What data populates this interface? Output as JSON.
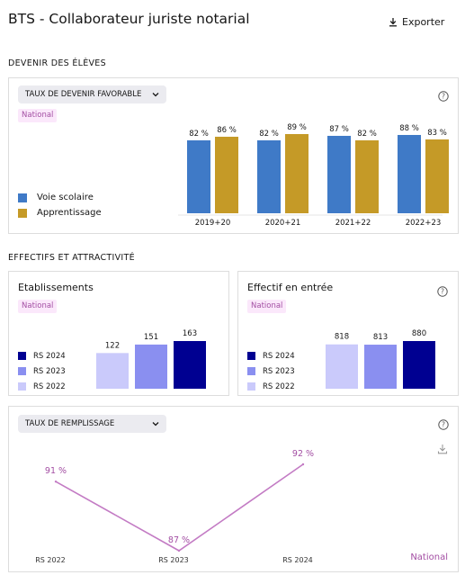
{
  "page": {
    "title": "BTS - Collaborateur juriste notarial",
    "export_label": "Exporter"
  },
  "devenir": {
    "section_title": "DEVENIR DES ÉLÈVES",
    "select_value": "TAUX DE DEVENIR FAVORABLE",
    "scope_tag": "National",
    "legend": [
      {
        "label": "Voie scolaire",
        "color": "#3f7ac7"
      },
      {
        "label": "Apprentissage",
        "color": "#c59a27"
      }
    ],
    "chart_data": {
      "type": "bar",
      "categories": [
        "2019+20",
        "2020+21",
        "2021+22",
        "2022+23"
      ],
      "series": [
        {
          "name": "Voie scolaire",
          "values": [
            82,
            82,
            87,
            88
          ],
          "labels": [
            "82 %",
            "82 %",
            "87 %",
            "88 %"
          ]
        },
        {
          "name": "Apprentissage",
          "values": [
            86,
            89,
            82,
            83
          ],
          "labels": [
            "86 %",
            "89 %",
            "82 %",
            "83 %"
          ]
        }
      ]
    }
  },
  "effectifs": {
    "section_title": "EFFECTIFS ET ATTRACTIVITÉ",
    "etablissements": {
      "title": "Etablissements",
      "scope_tag": "National",
      "legend": [
        {
          "label": "RS 2024",
          "color": "#000091"
        },
        {
          "label": "RS 2023",
          "color": "#8a8ff0"
        },
        {
          "label": "RS 2022",
          "color": "#cacafb"
        }
      ],
      "chart_data": {
        "type": "bar",
        "categories": [
          "RS 2022",
          "RS 2023",
          "RS 2024"
        ],
        "values": [
          122,
          151,
          163
        ],
        "labels": [
          "122",
          "151",
          "163"
        ],
        "colors": [
          "#cacafb",
          "#8a8ff0",
          "#000091"
        ]
      }
    },
    "effectif_entree": {
      "title": "Effectif en entrée",
      "scope_tag": "National",
      "legend": [
        {
          "label": "RS 2024",
          "color": "#000091"
        },
        {
          "label": "RS 2023",
          "color": "#8a8ff0"
        },
        {
          "label": "RS 2022",
          "color": "#cacafb"
        }
      ],
      "chart_data": {
        "type": "bar",
        "categories": [
          "RS 2022",
          "RS 2023",
          "RS 2024"
        ],
        "values": [
          818,
          813,
          880
        ],
        "labels": [
          "818",
          "813",
          "880"
        ],
        "colors": [
          "#cacafb",
          "#8a8ff0",
          "#000091"
        ]
      }
    },
    "remplissage": {
      "select_value": "TAUX DE REMPLISSAGE",
      "series_label": "National",
      "chart_data": {
        "type": "line",
        "categories": [
          "RS 2022",
          "RS 2023",
          "RS 2024"
        ],
        "values": [
          91,
          87,
          92
        ],
        "labels": [
          "91 %",
          "87 %",
          "92 %"
        ],
        "color": "#c37bc4"
      }
    }
  }
}
